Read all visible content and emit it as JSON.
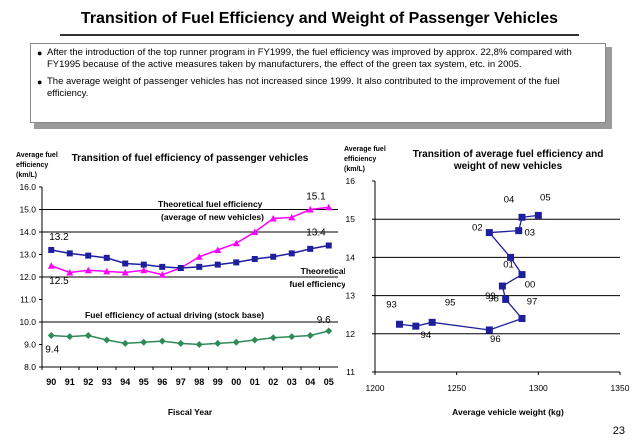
{
  "slide": {
    "title": "Transition of Fuel Efficiency  and Weight of Passenger Vehicles",
    "bullets": [
      "After the introduction of the top runner program in FY1999, the fuel  efficiency was improved by approx. 22,8% compared with FY1995  because of the active measures  taken by manufacturers,  the effect of the green tax system, etc. in 2005.",
      "The average weight of passenger vehicles has not increased since 1999.  It also contributed to the improvement of the fuel  efficiency."
    ],
    "page_number": "23"
  },
  "colors": {
    "theoretical": "#ff00ff",
    "average": "#1f1f9e",
    "actual": "#2e8b57",
    "weight_series": "#1f1f9e",
    "gridline": "#000000"
  },
  "chart_data": [
    {
      "type": "line",
      "title": "Transition of fuel efficiency of passenger vehicles",
      "ylabel": "Average fuel efficiency (km/L)",
      "ylabel_lines": [
        "Average fuel",
        "efficiency",
        "(km/L)"
      ],
      "xlabel": "Fiscal Year",
      "categories": [
        "90",
        "91",
        "92",
        "93",
        "94",
        "95",
        "96",
        "97",
        "98",
        "99",
        "00",
        "01",
        "02",
        "03",
        "04",
        "05"
      ],
      "ylim": [
        8.0,
        16.0
      ],
      "yticks": [
        "8.0",
        "9.0",
        "10.0",
        "11.0",
        "12.0",
        "13.0",
        "14.0",
        "15.0",
        "16.0"
      ],
      "gridlines": [
        10.0,
        12.0,
        14.0,
        15.0
      ],
      "series": [
        {
          "name": "Theoretical fuel efficiency (average of new vehicles)",
          "label_lines": [
            "Theoretical fuel efficiency",
            "(average of new vehicles)"
          ],
          "values": [
            12.5,
            12.2,
            12.3,
            12.25,
            12.2,
            12.3,
            12.1,
            12.4,
            12.9,
            13.2,
            13.5,
            14.0,
            14.6,
            14.65,
            15.0,
            15.1
          ]
        },
        {
          "name": "Theoretical fuel efficiency",
          "label_lines": [
            "Theoretical",
            "fuel efficiency"
          ],
          "values": [
            13.2,
            13.05,
            12.95,
            12.85,
            12.6,
            12.55,
            12.45,
            12.4,
            12.45,
            12.55,
            12.65,
            12.8,
            12.9,
            13.05,
            13.25,
            13.4
          ]
        },
        {
          "name": "Fuel efficiency of actual driving (stock base)",
          "label_lines": [
            "Fuel efficiency of actual driving (stock base)"
          ],
          "values": [
            9.4,
            9.35,
            9.4,
            9.2,
            9.05,
            9.1,
            9.15,
            9.05,
            9.0,
            9.05,
            9.1,
            9.2,
            9.3,
            9.35,
            9.4,
            9.6
          ]
        }
      ],
      "annotations": [
        "13.2",
        "12.5",
        "15.1",
        "13.4",
        "9.6",
        "9.4"
      ]
    },
    {
      "type": "scatter",
      "title": "Transition of average fuel efficiency and weight of new vehicles",
      "title_lines": [
        "Transition of average fuel efficiency and",
        "weight of new vehicles"
      ],
      "ylabel": "Average fuel efficiency (km/L)",
      "ylabel_lines": [
        "Average fuel",
        "efficiency",
        "(km/L)"
      ],
      "xlabel": "Average vehicle weight (kg)",
      "xlim": [
        1200,
        1350
      ],
      "xticks": [
        "1200",
        "1250",
        "1300",
        "1350"
      ],
      "ylim": [
        11,
        16
      ],
      "yticks": [
        "11",
        "12",
        "13",
        "14",
        "15",
        "16"
      ],
      "gridlines": [
        12,
        13,
        14,
        15
      ],
      "points": [
        {
          "label": "93",
          "x": 1215,
          "y": 12.25
        },
        {
          "label": "94",
          "x": 1225,
          "y": 12.2
        },
        {
          "label": "95",
          "x": 1235,
          "y": 12.3
        },
        {
          "label": "96",
          "x": 1270,
          "y": 12.1
        },
        {
          "label": "97",
          "x": 1290,
          "y": 12.4
        },
        {
          "label": "98",
          "x": 1280,
          "y": 12.9
        },
        {
          "label": "99",
          "x": 1278,
          "y": 13.25
        },
        {
          "label": "00",
          "x": 1290,
          "y": 13.55
        },
        {
          "label": "01",
          "x": 1283,
          "y": 14.0
        },
        {
          "label": "02",
          "x": 1270,
          "y": 14.65
        },
        {
          "label": "03",
          "x": 1288,
          "y": 14.7
        },
        {
          "label": "04",
          "x": 1290,
          "y": 15.05
        },
        {
          "label": "05",
          "x": 1300,
          "y": 15.1
        }
      ]
    }
  ]
}
